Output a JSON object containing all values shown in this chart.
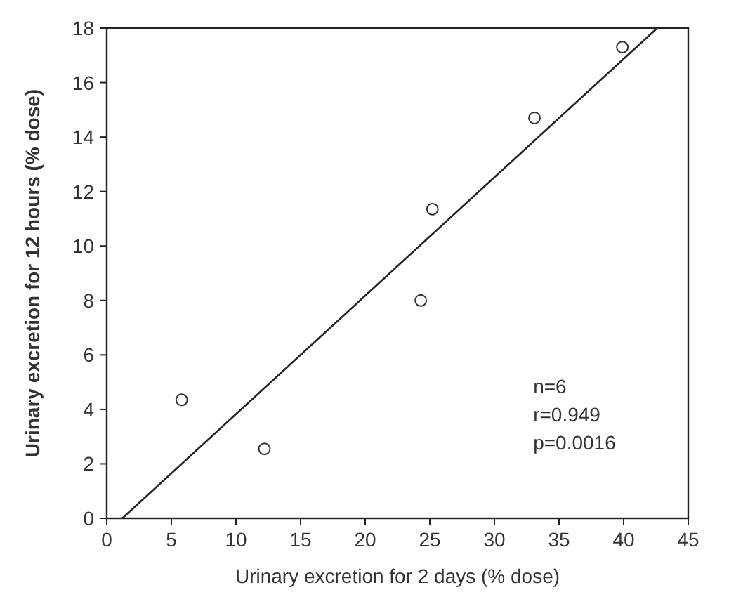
{
  "chart_data": {
    "type": "scatter",
    "xlabel": "Urinary excretion for 2 days (% dose)",
    "ylabel": "Urinary excretion for 12 hours (% dose)",
    "series": [
      {
        "color": "#333333",
        "marker": "circle",
        "x": [
          5.8,
          12.2,
          24.3,
          25.2,
          33.1,
          39.9
        ],
        "values": [
          4.35,
          2.55,
          8.0,
          11.35,
          14.7,
          17.3
        ]
      },
      {
        "type": "line",
        "color": "#222222",
        "marker": "none",
        "x": [
          1.2,
          42.6
        ],
        "values": [
          0,
          18
        ]
      }
    ],
    "xlim": [
      0,
      45
    ],
    "xticks": [
      0,
      5,
      10,
      15,
      20,
      25,
      30,
      35,
      40,
      45
    ],
    "ylim": [
      0,
      18
    ],
    "yticks": [
      0,
      2,
      4,
      6,
      8,
      10,
      12,
      14,
      16,
      18
    ],
    "annotations": [
      "n=6",
      "r=0.949",
      "p=0.0016"
    ],
    "grid": false
  }
}
